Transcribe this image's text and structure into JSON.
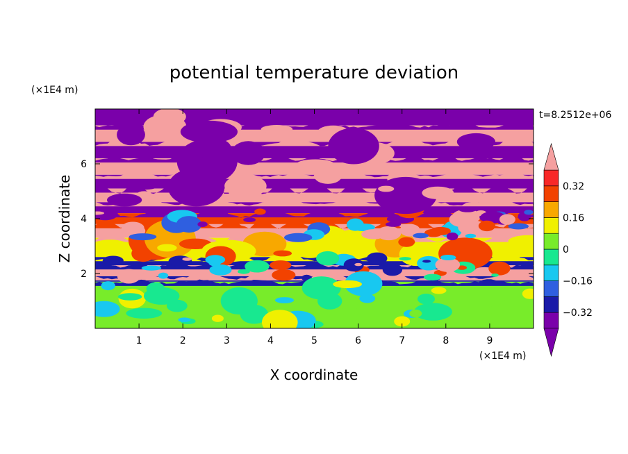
{
  "chart_data": {
    "type": "heatmap",
    "title": "potential temperature deviation",
    "xlabel": "X coordinate",
    "ylabel": "Z coordinate",
    "x_unit_label": "(×1E4 m)",
    "y_unit_label": "(×1E4 m)",
    "time_label": "t=8.2512e+06",
    "xlim": [
      0,
      10
    ],
    "ylim": [
      0,
      8
    ],
    "x_ticks": [
      "1",
      "2",
      "3",
      "4",
      "5",
      "6",
      "7",
      "8",
      "9"
    ],
    "y_ticks": [
      "2",
      "4",
      "6"
    ],
    "colorbar": {
      "ticks": [
        "0.32",
        "0.16",
        "0",
        "−0.16",
        "−0.32"
      ],
      "tick_values": [
        0.32,
        0.16,
        0,
        -0.16,
        -0.32
      ],
      "levels": [
        -0.4,
        -0.32,
        -0.24,
        -0.16,
        -0.08,
        0,
        0.08,
        0.16,
        0.24,
        0.32,
        0.4
      ],
      "colors": [
        "#7a00aa",
        "#1a1aa8",
        "#2f5fe0",
        "#18c8f0",
        "#18e890",
        "#78ec2a",
        "#f0f000",
        "#f8a800",
        "#f24200",
        "#f82828",
        "#f5a0a0"
      ]
    },
    "bands": [
      {
        "z": [
          7.4,
          8.0
        ],
        "level": "negative",
        "color": "#7a00aa"
      },
      {
        "z": [
          6.8,
          7.4
        ],
        "level": "positive",
        "color": "#f5a0a0"
      },
      {
        "z": [
          6.2,
          6.8
        ],
        "level": "negative",
        "color": "#7a00aa"
      },
      {
        "z": [
          5.6,
          6.2
        ],
        "level": "positive",
        "color": "#f5a0a0"
      },
      {
        "z": [
          5.1,
          5.6
        ],
        "level": "negative",
        "color": "#7a00aa"
      },
      {
        "z": [
          4.6,
          5.1
        ],
        "level": "positive",
        "color": "#f5a0a0"
      },
      {
        "z": [
          4.2,
          4.6
        ],
        "level": "negative",
        "color": "#7a00aa"
      },
      {
        "z": [
          3.8,
          4.2
        ],
        "level": "mixed",
        "color": "#f24200"
      },
      {
        "z": [
          3.3,
          3.8
        ],
        "level": "positive",
        "color": "#f5a0a0"
      },
      {
        "z": [
          2.6,
          3.3
        ],
        "level": "positive",
        "color": "#f0f000"
      },
      {
        "z": [
          2.3,
          2.6
        ],
        "level": "negative",
        "color": "#1a1aa8"
      },
      {
        "z": [
          1.9,
          2.3
        ],
        "level": "positive",
        "color": "#f5a0a0"
      },
      {
        "z": [
          1.7,
          1.9
        ],
        "level": "negative",
        "color": "#1a1aa8"
      },
      {
        "z": [
          0.0,
          1.7
        ],
        "level": "near-zero",
        "color": "#78ec2a"
      }
    ]
  }
}
